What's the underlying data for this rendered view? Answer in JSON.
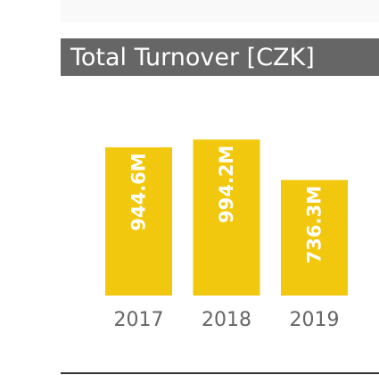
{
  "chart_data": {
    "type": "bar",
    "title": "Total Turnover [CZK]",
    "categories": [
      "2017",
      "2018",
      "2019"
    ],
    "values": [
      944.6,
      994.2,
      736.3
    ],
    "data_labels": [
      "944.6M",
      "994.2M",
      "736.3M"
    ],
    "unit": "M",
    "ylim": [
      0,
      1000
    ],
    "grid": false,
    "legend": "none"
  },
  "colors": {
    "bar": "#f2c80f",
    "title_background": "#666666",
    "title_text": "#ffffff",
    "label": "#ffffff",
    "tick": "#666666"
  }
}
